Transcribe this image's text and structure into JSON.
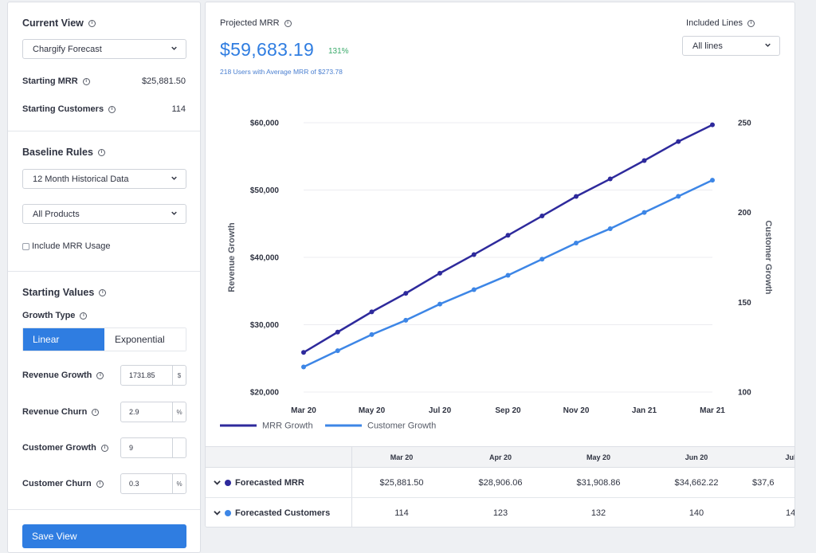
{
  "left_panel": {
    "current_view": {
      "title": "Current View",
      "selected": "Chargify Forecast",
      "starting_mrr_label": "Starting MRR",
      "starting_mrr_value": "$25,881.50",
      "starting_customers_label": "Starting Customers",
      "starting_customers_value": "114"
    },
    "baseline_rules": {
      "title": "Baseline Rules",
      "historical_selected": "12 Month Historical Data",
      "products_selected": "All Products",
      "include_mrr_usage_label": "Include MRR Usage",
      "include_mrr_usage_checked": false
    },
    "starting_values": {
      "title": "Starting Values",
      "growth_type_label": "Growth Type",
      "growth_options": [
        "Linear",
        "Exponential"
      ],
      "growth_selected": "Linear",
      "fields": [
        {
          "label": "Revenue Growth",
          "value": "1731.85",
          "unit": "$"
        },
        {
          "label": "Revenue Churn",
          "value": "2.9",
          "unit": "%"
        },
        {
          "label": "Customer Growth",
          "value": "9",
          "unit": ""
        },
        {
          "label": "Customer Churn",
          "value": "0.3",
          "unit": "%"
        }
      ]
    },
    "save_label": "Save View"
  },
  "main": {
    "projected_label": "Projected MRR",
    "projected_value": "$59,683.19",
    "projected_pct": "131%",
    "projected_sub": "218 Users with Average MRR of $273.78",
    "included_lines_label": "Included Lines",
    "included_lines_selected": "All lines"
  },
  "colors": {
    "accent": "#2f7de1",
    "mrr_line": "#2e2a9c",
    "customer_line": "#3d86e6",
    "positive": "#3aaa6b"
  },
  "chart_data": {
    "type": "line",
    "x": [
      "Mar 20",
      "Apr 20",
      "May 20",
      "Jun 20",
      "Jul 20",
      "Aug 20",
      "Sep 20",
      "Oct 20",
      "Nov 20",
      "Dec 20",
      "Jan 21",
      "Feb 21",
      "Mar 21"
    ],
    "x_tick_labels": [
      "Mar 20",
      "May 20",
      "Jul 20",
      "Sep 20",
      "Nov 20",
      "Jan 21",
      "Mar 21"
    ],
    "series": [
      {
        "name": "MRR Growth",
        "axis": "left",
        "color": "#2e2a9c",
        "values": [
          25881.5,
          28906.06,
          31908.86,
          34662.22,
          37650,
          40420,
          43280,
          46150,
          49050,
          51650,
          54380,
          57210,
          59683.19
        ]
      },
      {
        "name": "Customer Growth",
        "axis": "right",
        "color": "#3d86e6",
        "values": [
          114,
          123,
          132,
          140,
          149,
          157,
          165,
          174,
          183,
          191,
          200,
          209,
          218
        ]
      }
    ],
    "ylabel": "Revenue Growth",
    "ylabel_right": "Customer Growth",
    "ylim": [
      20000,
      60000
    ],
    "y_ticks": [
      "$60,000",
      "$50,000",
      "$40,000",
      "$30,000",
      "$20,000"
    ],
    "ylim_right": [
      100,
      250
    ],
    "y_ticks_right": [
      "250",
      "200",
      "150",
      "100"
    ],
    "grid": true,
    "legend": "bottom-left"
  },
  "table": {
    "columns": [
      "Mar 20",
      "Apr 20",
      "May 20",
      "Jun 20",
      "Jul"
    ],
    "rows": [
      {
        "label": "Forecasted MRR",
        "color": "#2e2a9c",
        "values": [
          "$25,881.50",
          "$28,906.06",
          "$31,908.86",
          "$34,662.22",
          "$37,6"
        ]
      },
      {
        "label": "Forecasted Customers",
        "color": "#3d86e6",
        "values": [
          "114",
          "123",
          "132",
          "140",
          "14"
        ]
      }
    ]
  }
}
